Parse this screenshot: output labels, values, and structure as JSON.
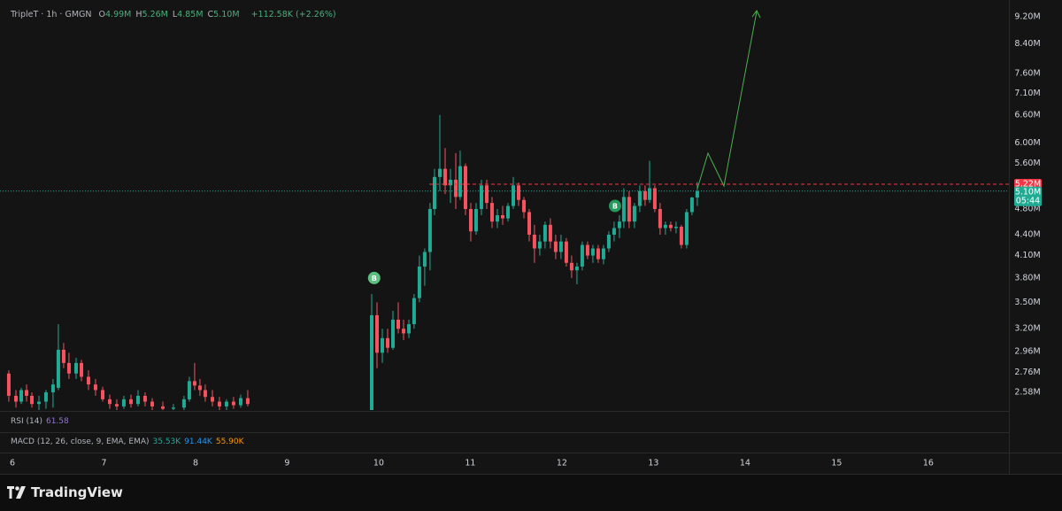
{
  "chart_data": {
    "type": "candlestick",
    "title": "TripleT · 1h · GMGN",
    "legend_values": [
      {
        "key": "O",
        "value": "4.99M"
      },
      {
        "key": "H",
        "value": "5.26M"
      },
      {
        "key": "L",
        "value": "4.85M"
      },
      {
        "key": "C",
        "value": "5.10M"
      }
    ],
    "change": "+112.58K (+2.26%)",
    "log_scale": true,
    "grid": false,
    "up_color": "#22ab94",
    "down_color": "#f7525f",
    "xlim": [
      5.865,
      16.88
    ],
    "xticks": [
      6,
      7,
      8,
      9,
      10,
      11,
      12,
      13,
      14,
      15,
      16
    ],
    "ylim": [
      2.43,
      9.51
    ],
    "yticks": [
      {
        "value": 2.58,
        "label": "2.58M"
      },
      {
        "value": 2.76,
        "label": "2.76M"
      },
      {
        "value": 2.96,
        "label": "2.96M"
      },
      {
        "value": 3.2,
        "label": "3.20M"
      },
      {
        "value": 3.5,
        "label": "3.50M"
      },
      {
        "value": 3.8,
        "label": "3.80M"
      },
      {
        "value": 4.1,
        "label": "4.10M"
      },
      {
        "value": 4.4,
        "label": "4.40M"
      },
      {
        "value": 4.8,
        "label": "4.80M"
      },
      {
        "value": 5.6,
        "label": "5.60M"
      },
      {
        "value": 6.0,
        "label": "6.00M"
      },
      {
        "value": 6.6,
        "label": "6.60M"
      },
      {
        "value": 7.1,
        "label": "7.10M"
      },
      {
        "value": 7.6,
        "label": "7.60M"
      },
      {
        "value": 8.4,
        "label": "8.40M"
      },
      {
        "value": 9.2,
        "label": "9.20M"
      }
    ],
    "x": [
      5.961,
      6.039,
      6.097,
      6.155,
      6.213,
      6.29,
      6.367,
      6.444,
      6.502,
      6.56,
      6.618,
      6.696,
      6.754,
      6.831,
      6.908,
      6.986,
      7.063,
      7.14,
      7.217,
      7.295,
      7.372,
      7.449,
      7.527,
      7.643,
      7.758,
      7.874,
      7.932,
      7.99,
      8.048,
      8.106,
      8.184,
      8.261,
      8.338,
      8.415,
      8.493,
      8.57,
      9.923,
      9.981,
      10.039,
      10.097,
      10.155,
      10.213,
      10.271,
      10.329,
      10.386,
      10.444,
      10.502,
      10.56,
      10.609,
      10.667,
      10.725,
      10.783,
      10.841,
      10.889,
      10.947,
      11.005,
      11.063,
      11.121,
      11.179,
      11.237,
      11.295,
      11.353,
      11.411,
      11.469,
      11.527,
      11.585,
      11.643,
      11.7,
      11.758,
      11.816,
      11.874,
      11.932,
      11.99,
      12.048,
      12.106,
      12.164,
      12.222,
      12.28,
      12.338,
      12.396,
      12.454,
      12.512,
      12.57,
      12.628,
      12.676,
      12.734,
      12.792,
      12.85,
      12.908,
      12.957,
      13.014,
      13.072,
      13.13,
      13.188,
      13.246,
      13.304,
      13.362,
      13.42,
      13.478
    ],
    "open": [
      2.75,
      2.55,
      2.5,
      2.6,
      2.55,
      2.48,
      2.5,
      2.58,
      2.62,
      2.98,
      2.85,
      2.75,
      2.85,
      2.72,
      2.65,
      2.6,
      2.52,
      2.48,
      2.46,
      2.52,
      2.48,
      2.55,
      2.5,
      2.46,
      2.44,
      2.45,
      2.52,
      2.68,
      2.64,
      2.6,
      2.54,
      2.5,
      2.46,
      2.5,
      2.47,
      2.53,
      2.4,
      3.35,
      2.95,
      3.1,
      3.0,
      3.3,
      3.2,
      3.15,
      3.25,
      3.55,
      3.95,
      4.15,
      4.8,
      5.35,
      5.5,
      5.2,
      5.3,
      5.0,
      5.55,
      4.8,
      4.45,
      4.8,
      5.2,
      4.9,
      4.6,
      4.7,
      4.65,
      4.85,
      5.2,
      4.95,
      4.75,
      4.4,
      4.2,
      4.3,
      4.55,
      4.3,
      4.15,
      4.3,
      4.0,
      3.9,
      3.95,
      4.25,
      4.1,
      4.2,
      4.05,
      4.2,
      4.4,
      4.5,
      4.6,
      5.0,
      4.6,
      4.85,
      5.1,
      4.95,
      5.15,
      4.8,
      4.5,
      4.55,
      4.5,
      4.52,
      4.25,
      4.75,
      4.99
    ],
    "high": [
      2.78,
      2.6,
      2.62,
      2.65,
      2.58,
      2.55,
      2.6,
      2.7,
      3.25,
      3.05,
      2.95,
      2.9,
      2.88,
      2.78,
      2.7,
      2.63,
      2.56,
      2.52,
      2.55,
      2.56,
      2.6,
      2.58,
      2.53,
      2.5,
      2.48,
      2.55,
      2.72,
      2.85,
      2.7,
      2.65,
      2.6,
      2.54,
      2.52,
      2.54,
      2.56,
      2.6,
      3.6,
      3.5,
      3.2,
      3.2,
      3.4,
      3.5,
      3.3,
      3.3,
      3.6,
      4.1,
      4.2,
      4.9,
      5.5,
      6.6,
      5.9,
      5.5,
      5.8,
      5.85,
      5.6,
      4.9,
      4.9,
      5.3,
      5.3,
      5.0,
      4.8,
      4.85,
      4.9,
      5.35,
      5.25,
      5.0,
      4.8,
      4.55,
      4.4,
      4.6,
      4.65,
      4.4,
      4.4,
      4.35,
      4.1,
      4.0,
      4.3,
      4.3,
      4.25,
      4.25,
      4.25,
      4.45,
      4.6,
      4.7,
      5.15,
      5.1,
      4.9,
      5.2,
      5.2,
      5.65,
      5.2,
      4.9,
      4.6,
      4.6,
      4.6,
      4.55,
      4.8,
      5.0,
      5.26
    ],
    "low": [
      2.5,
      2.45,
      2.48,
      2.5,
      2.45,
      2.42,
      2.44,
      2.45,
      2.6,
      2.8,
      2.7,
      2.7,
      2.68,
      2.6,
      2.55,
      2.5,
      2.44,
      2.43,
      2.44,
      2.45,
      2.46,
      2.46,
      2.42,
      2.4,
      2.4,
      2.42,
      2.5,
      2.6,
      2.55,
      2.5,
      2.46,
      2.42,
      2.43,
      2.44,
      2.45,
      2.46,
      2.35,
      2.8,
      2.85,
      2.95,
      2.98,
      3.15,
      3.08,
      3.1,
      3.2,
      3.5,
      3.7,
      3.9,
      4.7,
      5.1,
      5.05,
      4.9,
      4.8,
      4.95,
      4.7,
      4.3,
      4.4,
      4.7,
      4.8,
      4.5,
      4.5,
      4.55,
      4.6,
      4.8,
      4.85,
      4.65,
      4.3,
      4.0,
      4.1,
      4.2,
      4.2,
      4.05,
      4.05,
      3.95,
      3.8,
      3.72,
      3.9,
      4.05,
      4.0,
      4.0,
      3.98,
      4.15,
      4.3,
      4.35,
      4.5,
      4.5,
      4.5,
      4.75,
      4.85,
      4.9,
      4.75,
      4.4,
      4.4,
      4.45,
      4.42,
      4.2,
      4.2,
      4.7,
      4.85
    ],
    "close": [
      2.55,
      2.5,
      2.6,
      2.55,
      2.48,
      2.5,
      2.58,
      2.65,
      2.98,
      2.85,
      2.75,
      2.85,
      2.72,
      2.65,
      2.6,
      2.52,
      2.48,
      2.46,
      2.52,
      2.48,
      2.55,
      2.5,
      2.46,
      2.44,
      2.45,
      2.52,
      2.68,
      2.64,
      2.6,
      2.54,
      2.5,
      2.46,
      2.5,
      2.47,
      2.53,
      2.48,
      3.35,
      2.95,
      3.1,
      3.0,
      3.3,
      3.2,
      3.15,
      3.25,
      3.55,
      3.95,
      4.15,
      4.8,
      5.35,
      5.5,
      5.2,
      5.3,
      5.0,
      5.55,
      4.8,
      4.45,
      4.8,
      5.2,
      4.9,
      4.6,
      4.7,
      4.65,
      4.85,
      5.2,
      4.95,
      4.75,
      4.4,
      4.2,
      4.3,
      4.55,
      4.3,
      4.15,
      4.3,
      4.0,
      3.9,
      3.95,
      4.25,
      4.1,
      4.2,
      4.05,
      4.2,
      4.4,
      4.5,
      4.6,
      5.0,
      4.6,
      4.85,
      5.1,
      4.95,
      5.15,
      4.8,
      4.5,
      4.55,
      4.5,
      4.52,
      4.25,
      4.75,
      4.99,
      5.1
    ],
    "last_price": {
      "value": 5.1,
      "label": "5.10M",
      "color": "#22ab94"
    },
    "countdown": "05:44",
    "level": {
      "value": 5.22,
      "label": "5.22M",
      "color": "#f23645"
    },
    "markers": [
      {
        "label": "B",
        "x": 9.95,
        "y": 3.8,
        "color": "#5cbf7f"
      },
      {
        "label": "B",
        "x": 12.58,
        "y": 4.85,
        "color": "#239a5c"
      }
    ],
    "indicators": [
      {
        "name": "RSI (14)",
        "values": [
          {
            "text": "61.58",
            "color": "#9575cd"
          }
        ]
      },
      {
        "name": "MACD (12, 26, close, 9, EMA, EMA)",
        "values": [
          {
            "text": "35.53K",
            "color": "#26a69a"
          },
          {
            "text": "91.44K",
            "color": "#2196f3"
          },
          {
            "text": "55.90K",
            "color": "#ff9800"
          }
        ]
      }
    ],
    "brand": "TradingView"
  }
}
